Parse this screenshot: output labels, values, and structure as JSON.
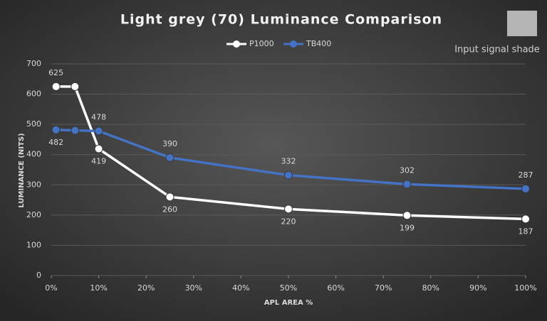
{
  "chart_data": {
    "type": "line",
    "title": "Light grey (70) Luminance Comparison",
    "annotation": "Input signal shade",
    "shade_color": "#b4b4b4",
    "xlabel": "APL AREA %",
    "ylabel": "LUMINANCE (NITS)",
    "x": [
      1,
      5,
      10,
      25,
      50,
      75,
      100
    ],
    "series": [
      {
        "name": "P1000",
        "color": "#ffffff",
        "values": [
          625,
          625,
          419,
          260,
          220,
          199,
          187
        ],
        "value_labels": [
          "625",
          null,
          "419",
          "260",
          "220",
          "199",
          "187"
        ]
      },
      {
        "name": "TB400",
        "color": "#4472c4",
        "values": [
          482,
          480,
          478,
          390,
          332,
          302,
          287
        ],
        "value_labels": [
          "482",
          null,
          "478",
          "390",
          "332",
          "302",
          "287"
        ]
      }
    ],
    "xlim": [
      0,
      100
    ],
    "xticks": [
      {
        "value": 0,
        "label": "0%"
      },
      {
        "value": 10,
        "label": "10%"
      },
      {
        "value": 20,
        "label": "20%"
      },
      {
        "value": 30,
        "label": "30%"
      },
      {
        "value": 40,
        "label": "40%"
      },
      {
        "value": 50,
        "label": "50%"
      },
      {
        "value": 60,
        "label": "60%"
      },
      {
        "value": 70,
        "label": "70%"
      },
      {
        "value": 80,
        "label": "80%"
      },
      {
        "value": 90,
        "label": "90%"
      },
      {
        "value": 100,
        "label": "100%"
      }
    ],
    "ylim": [
      0,
      700
    ],
    "yticks": [
      0,
      100,
      200,
      300,
      400,
      500,
      600,
      700
    ],
    "grid": true
  }
}
